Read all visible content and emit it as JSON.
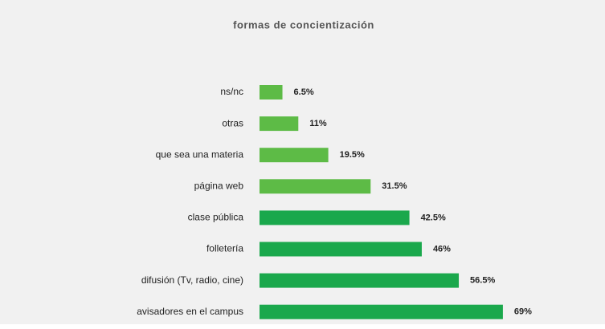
{
  "chart_data": {
    "type": "bar",
    "orientation": "horizontal",
    "title": "formas de concientización",
    "categories": [
      "ns/nc",
      "otras",
      "que sea una materia",
      "página web",
      "clase pública",
      "folletería",
      "difusión (Tv, radio, cine)",
      "avisadores en el campus"
    ],
    "values": [
      6.5,
      11,
      19.5,
      31.5,
      42.5,
      46,
      56.5,
      69
    ],
    "value_labels": [
      "6.5%",
      "11%",
      "19.5%",
      "31.5%",
      "42.5%",
      "46%",
      "56.5%",
      "69%"
    ],
    "colors": [
      "#5dbb46",
      "#5dbb46",
      "#5dbb46",
      "#5dbb46",
      "#1aa84c",
      "#1aa84c",
      "#1aa84c",
      "#1aa84c"
    ]
  }
}
